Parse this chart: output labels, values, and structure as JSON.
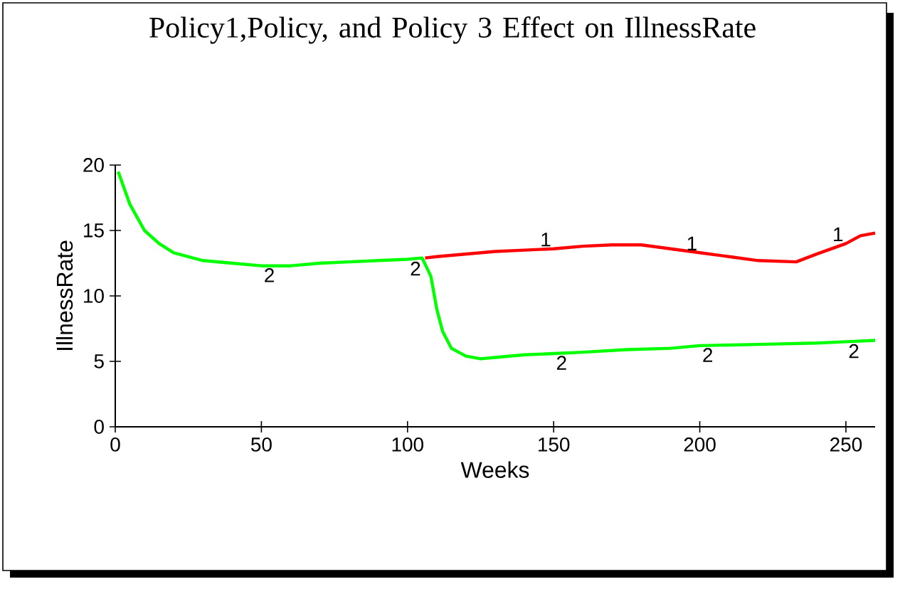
{
  "chart_data": {
    "type": "line",
    "title": "Policy1,Policy, and Policy 3 Effect on IllnessRate",
    "xlabel": "Weeks",
    "ylabel": "IllnessRate",
    "xlim": [
      0,
      260
    ],
    "ylim": [
      0,
      20
    ],
    "xticks": [
      0,
      50,
      100,
      150,
      200,
      250
    ],
    "yticks": [
      0,
      5,
      10,
      15,
      20
    ],
    "marker": "none",
    "line_style": "solid",
    "series": [
      {
        "name": "1",
        "color": "#ff0000",
        "x": [
          106,
          110,
          120,
          130,
          140,
          150,
          160,
          170,
          180,
          190,
          200,
          210,
          220,
          233,
          240,
          250,
          255,
          260
        ],
        "values": [
          12.9,
          13.0,
          13.2,
          13.4,
          13.5,
          13.6,
          13.8,
          13.9,
          13.9,
          13.6,
          13.3,
          13.0,
          12.7,
          12.6,
          13.2,
          14.0,
          14.6,
          14.8
        ]
      },
      {
        "name": "2",
        "color": "#00ff00",
        "x": [
          1,
          5,
          10,
          15,
          20,
          30,
          40,
          50,
          60,
          70,
          80,
          90,
          100,
          105,
          108,
          110,
          112,
          115,
          120,
          125,
          130,
          140,
          150,
          160,
          175,
          190,
          200,
          220,
          240,
          250,
          260
        ],
        "values": [
          19.5,
          17,
          15,
          14,
          13.3,
          12.7,
          12.5,
          12.3,
          12.3,
          12.5,
          12.6,
          12.7,
          12.8,
          12.9,
          11.5,
          9,
          7.3,
          6,
          5.4,
          5.2,
          5.3,
          5.5,
          5.6,
          5.7,
          5.9,
          6.0,
          6.2,
          6.3,
          6.4,
          6.5,
          6.6
        ]
      }
    ]
  }
}
